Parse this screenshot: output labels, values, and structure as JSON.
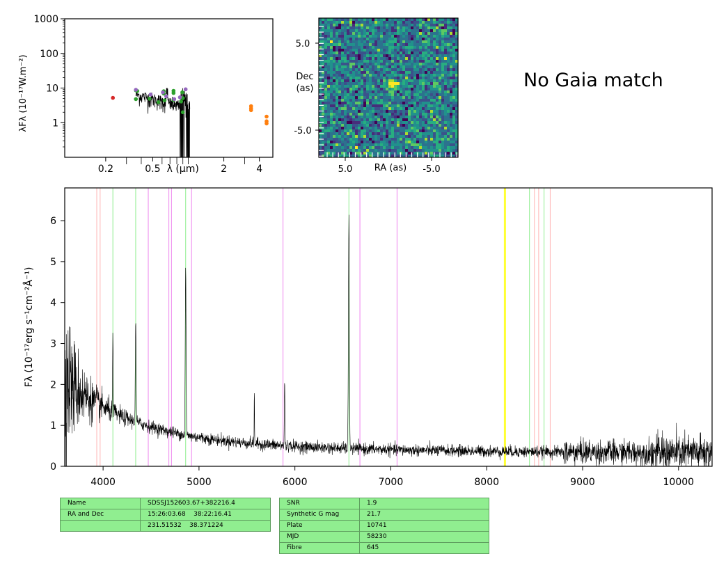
{
  "gaia_status": "No Gaia match",
  "chart_data": [
    {
      "type": "scatter",
      "id": "sed",
      "xlabel": "λ (μm)",
      "ylabel": "λFλ (10⁻¹⁷W.m⁻²)",
      "xscale": "log",
      "yscale": "log",
      "xlim": [
        0.09,
        5.2
      ],
      "ylim": [
        0.1,
        1000
      ],
      "xticks": [
        "0.2",
        "0.5",
        "λ (μm)",
        "2",
        "4"
      ],
      "yticks": [
        "1",
        "10",
        "100",
        "1000"
      ],
      "series": [
        {
          "color": "#d62728",
          "points": [
            [
              0.23,
              5.2
            ]
          ]
        },
        {
          "color": "#2ca02c",
          "points": [
            [
              0.36,
              8.6
            ],
            [
              0.37,
              8.2
            ],
            [
              0.36,
              4.8
            ],
            [
              0.47,
              4.9
            ],
            [
              0.56,
              3.9
            ],
            [
              0.62,
              8.1
            ],
            [
              0.62,
              6.9
            ],
            [
              0.63,
              4.4
            ],
            [
              0.75,
              8.3
            ],
            [
              0.75,
              7.2
            ],
            [
              0.75,
              4.5
            ],
            [
              0.89,
              7.5
            ],
            [
              0.9,
              5.1
            ],
            [
              0.87,
              4.1
            ],
            [
              0.9,
              2.0
            ]
          ]
        },
        {
          "color": "#9467bd",
          "points": [
            [
              0.36,
              8.9
            ],
            [
              0.48,
              6.5
            ],
            [
              0.61,
              7.5
            ],
            [
              0.65,
              5.8
            ],
            [
              0.76,
              4.8
            ],
            [
              0.85,
              5.4
            ],
            [
              0.95,
              9.2
            ]
          ]
        },
        {
          "color": "#ff7f0e",
          "points": [
            [
              3.4,
              3.0
            ],
            [
              3.4,
              2.6
            ],
            [
              3.4,
              2.3
            ],
            [
              4.6,
              1.5
            ],
            [
              4.6,
              1.1
            ],
            [
              4.6,
              0.95
            ]
          ]
        }
      ],
      "spectrum_note_range_um": [
        0.36,
        1.03
      ]
    },
    {
      "type": "heatmap",
      "id": "cutout",
      "xlabel": "RA (as)",
      "ylabel": "Dec\n(as)",
      "xticks": [
        "5.0",
        "-5.0"
      ],
      "yticks": [
        "5.0",
        "-5.0"
      ],
      "source_position_as": [
        0,
        0.5
      ]
    },
    {
      "type": "line",
      "id": "spectrum",
      "xlabel": "",
      "ylabel": "Fλ (10⁻¹⁷erg s⁻¹cm⁻²Å⁻¹)",
      "xlim": [
        3600,
        10350
      ],
      "ylim": [
        0,
        6.8
      ],
      "xticks": [
        4000,
        5000,
        6000,
        7000,
        8000,
        9000,
        10000
      ],
      "yticks": [
        0,
        1,
        2,
        3,
        4,
        5,
        6
      ],
      "emission_lines": [
        {
          "center": 4102,
          "height": 1.8,
          "width": 3
        },
        {
          "center": 4340,
          "height": 2.4,
          "width": 4
        },
        {
          "center": 4861,
          "height": 4.2,
          "width": 4
        },
        {
          "center": 5577,
          "height": 1.3,
          "width": 2
        },
        {
          "center": 5893,
          "height": 1.6,
          "width": 3
        },
        {
          "center": 6563,
          "height": 5.6,
          "width": 5
        }
      ],
      "vlines": [
        {
          "x": 3934,
          "color": "#ffb3b3"
        },
        {
          "x": 3969,
          "color": "#ffb3b3"
        },
        {
          "x": 4102,
          "color": "#90ee90"
        },
        {
          "x": 4340,
          "color": "#90ee90"
        },
        {
          "x": 4471,
          "color": "#ee82ee"
        },
        {
          "x": 4686,
          "color": "#ee82ee"
        },
        {
          "x": 4713,
          "color": "#ee82ee"
        },
        {
          "x": 4861,
          "color": "#90ee90"
        },
        {
          "x": 4922,
          "color": "#ee82ee"
        },
        {
          "x": 5876,
          "color": "#ee82ee"
        },
        {
          "x": 6563,
          "color": "#90ee90"
        },
        {
          "x": 6678,
          "color": "#ee82ee"
        },
        {
          "x": 7065,
          "color": "#ee82ee"
        },
        {
          "x": 8190,
          "color": "#ffff33",
          "width": 3
        },
        {
          "x": 8446,
          "color": "#90ee90"
        },
        {
          "x": 8498,
          "color": "#ffb3b3"
        },
        {
          "x": 8542,
          "color": "#ffb3b3"
        },
        {
          "x": 8598,
          "color": "#90ee90"
        },
        {
          "x": 8662,
          "color": "#ffb3b3"
        }
      ]
    }
  ],
  "table_left": {
    "rows": [
      [
        "Name",
        "SDSSJ152603.67+382216.4"
      ],
      [
        "RA and Dec",
        "15:26:03.68    38:22:16.41"
      ],
      [
        "",
        "231.51532    38.371224"
      ]
    ]
  },
  "table_right": {
    "rows": [
      [
        "SNR",
        "1.9"
      ],
      [
        "Synthetic G mag",
        "21.7"
      ],
      [
        "Plate",
        "10741"
      ],
      [
        "MJD",
        "58230"
      ],
      [
        "Fibre",
        "645"
      ]
    ]
  }
}
